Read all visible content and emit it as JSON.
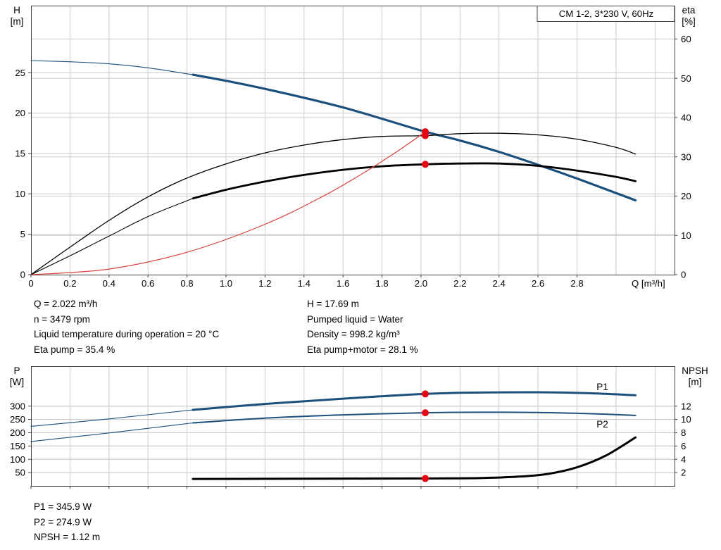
{
  "colors": {
    "blue": "#1b4f7c",
    "black": "#000000",
    "red": "#d9413d",
    "marker_red": "#e30613",
    "grid": "#cccccc",
    "frame": "#404040"
  },
  "info_top": {
    "left": [
      "Q = 2.022 m³/h",
      "n = 3479 rpm",
      "Liquid temperature during operation = 20 °C",
      "Eta pump = 35.4 %"
    ],
    "right": [
      "H = 17.69 m",
      "Pumped liquid = Water",
      "Density = 998.2 kg/m³",
      "Eta pump+motor = 28.1 %"
    ]
  },
  "info_bottom": [
    "P1 = 345.9 W",
    "P2 = 274.9 W",
    "NPSH = 1.12 m"
  ],
  "chart_data": [
    {
      "id": "top",
      "type": "line",
      "title": "CM 1-2, 3*230 V, 60Hz",
      "x_axis": {
        "label": "Q [m³/h]",
        "min": 0,
        "max": 3.3,
        "ticks": [
          0,
          0.2,
          0.4,
          0.6,
          0.8,
          1.0,
          1.2,
          1.4,
          1.6,
          1.8,
          2.0,
          2.2,
          2.4,
          2.6,
          2.8
        ],
        "tick_labels": [
          "0",
          "0.2",
          "0.4",
          "0.6",
          "0.8",
          "1.0",
          "1.2",
          "1.4",
          "1.6",
          "1.8",
          "2.0",
          "2.2",
          "2.4",
          "2.6",
          "2.8"
        ],
        "grid": [
          0.2,
          0.4,
          0.6,
          0.8,
          1.0,
          1.2,
          1.4,
          1.6,
          1.8,
          2.0,
          2.2,
          2.4,
          2.6,
          2.8,
          3.0,
          3.2
        ]
      },
      "y_left": {
        "label": "H",
        "unit": "[m]",
        "min": 0,
        "max": 33.3,
        "ticks": [
          0,
          5,
          10,
          15,
          20,
          25
        ]
      },
      "y_right": {
        "label": "eta",
        "unit": "[%]",
        "min": 0,
        "max": 68.5,
        "ticks": [
          0,
          10,
          20,
          30,
          40,
          50,
          60
        ]
      },
      "series": [
        {
          "name": "hq-curve-lead",
          "color": "blue",
          "width": 1.1,
          "axis": "left",
          "points": [
            [
              0,
              26.5
            ],
            [
              0.2,
              26.35
            ],
            [
              0.4,
              26.1
            ],
            [
              0.6,
              25.6
            ],
            [
              0.83,
              24.75
            ]
          ]
        },
        {
          "name": "hq-curve",
          "color": "blue",
          "width": 3.2,
          "axis": "left",
          "points": [
            [
              0.83,
              24.75
            ],
            [
              1.0,
              24.0
            ],
            [
              1.2,
              23.0
            ],
            [
              1.4,
              21.9
            ],
            [
              1.6,
              20.7
            ],
            [
              1.8,
              19.3
            ],
            [
              2.022,
              17.69
            ],
            [
              2.2,
              16.6
            ],
            [
              2.4,
              15.2
            ],
            [
              2.6,
              13.6
            ],
            [
              2.8,
              11.9
            ],
            [
              3.0,
              10.1
            ],
            [
              3.1,
              9.2
            ]
          ]
        },
        {
          "name": "eta-pump-curve",
          "color": "black",
          "width": 1.3,
          "axis": "right",
          "points": [
            [
              0,
              0
            ],
            [
              0.2,
              7.0
            ],
            [
              0.4,
              13.8
            ],
            [
              0.6,
              19.8
            ],
            [
              0.8,
              24.6
            ],
            [
              1.0,
              28.2
            ],
            [
              1.2,
              31.0
            ],
            [
              1.4,
              33.0
            ],
            [
              1.6,
              34.4
            ],
            [
              1.8,
              35.2
            ],
            [
              2.022,
              35.4
            ],
            [
              2.2,
              35.9
            ],
            [
              2.4,
              36.0
            ],
            [
              2.6,
              35.6
            ],
            [
              2.8,
              34.5
            ],
            [
              3.0,
              32.4
            ],
            [
              3.1,
              30.7
            ]
          ]
        },
        {
          "name": "eta-pump-motor-lead",
          "color": "black",
          "width": 1.1,
          "axis": "right",
          "points": [
            [
              0,
              0
            ],
            [
              0.2,
              4.8
            ],
            [
              0.4,
              9.8
            ],
            [
              0.6,
              14.8
            ],
            [
              0.83,
              19.4
            ]
          ]
        },
        {
          "name": "eta-pump-motor-curve",
          "color": "black",
          "width": 2.8,
          "axis": "right",
          "points": [
            [
              0.83,
              19.4
            ],
            [
              1.0,
              21.6
            ],
            [
              1.2,
              23.7
            ],
            [
              1.4,
              25.4
            ],
            [
              1.6,
              26.7
            ],
            [
              1.8,
              27.6
            ],
            [
              2.022,
              28.1
            ],
            [
              2.2,
              28.3
            ],
            [
              2.4,
              28.3
            ],
            [
              2.6,
              27.7
            ],
            [
              2.8,
              26.5
            ],
            [
              3.0,
              24.9
            ],
            [
              3.1,
              23.8
            ]
          ]
        },
        {
          "name": "system-curve",
          "color": "red",
          "width": 1.2,
          "axis": "left",
          "points": [
            [
              0,
              0
            ],
            [
              0.4,
              0.69
            ],
            [
              0.8,
              2.77
            ],
            [
              1.2,
              6.23
            ],
            [
              1.5,
              9.74
            ],
            [
              1.7,
              12.51
            ],
            [
              1.85,
              14.81
            ],
            [
              1.95,
              16.45
            ],
            [
              2.022,
              17.69
            ]
          ]
        }
      ],
      "markers": [
        {
          "q": 2.022,
          "v": 17.69,
          "axis": "left"
        },
        {
          "q": 2.022,
          "v": 35.4,
          "axis": "right"
        },
        {
          "q": 2.022,
          "v": 28.1,
          "axis": "right"
        }
      ]
    },
    {
      "id": "bottom",
      "type": "line",
      "title": "",
      "x_axis": {
        "label": "",
        "min": 0,
        "max": 3.3,
        "ticks": [
          0,
          0.2,
          0.4,
          0.6,
          0.8,
          1.0,
          1.2,
          1.4,
          1.6,
          1.8,
          2.0,
          2.2,
          2.4,
          2.6,
          2.8
        ],
        "tick_labels": [],
        "grid": [
          0.2,
          0.4,
          0.6,
          0.8,
          1.0,
          1.2,
          1.4,
          1.6,
          1.8,
          2.0,
          2.2,
          2.4,
          2.6,
          2.8,
          3.0,
          3.2
        ]
      },
      "y_left": {
        "label": "P",
        "unit": "[W]",
        "min": 0,
        "max": 450,
        "ticks": [
          50,
          100,
          150,
          200,
          250,
          300
        ]
      },
      "y_right": {
        "label": "NPSH",
        "unit": "[m]",
        "min": 0,
        "max": 18,
        "ticks": [
          2,
          4,
          6,
          8,
          10,
          12
        ]
      },
      "series": [
        {
          "name": "p1-curve-lead",
          "color": "blue",
          "width": 1.1,
          "axis": "left",
          "points": [
            [
              0,
              224
            ],
            [
              0.4,
              252
            ],
            [
              0.83,
              286
            ]
          ]
        },
        {
          "name": "p1-curve",
          "color": "blue",
          "width": 3.0,
          "axis": "left",
          "points": [
            [
              0.83,
              286
            ],
            [
              1.2,
              308
            ],
            [
              1.6,
              328
            ],
            [
              2.022,
              345.9
            ],
            [
              2.3,
              351
            ],
            [
              2.6,
              352
            ],
            [
              2.85,
              349
            ],
            [
              3.1,
              341
            ]
          ]
        },
        {
          "name": "p2-curve-lead",
          "color": "blue",
          "width": 1.1,
          "axis": "left",
          "points": [
            [
              0,
              167
            ],
            [
              0.4,
              199
            ],
            [
              0.83,
              237
            ]
          ]
        },
        {
          "name": "p2-curve",
          "color": "blue",
          "width": 2.0,
          "axis": "left",
          "points": [
            [
              0.83,
              237
            ],
            [
              1.2,
              255
            ],
            [
              1.6,
              267
            ],
            [
              2.022,
              274.9
            ],
            [
              2.3,
              277
            ],
            [
              2.6,
              276
            ],
            [
              2.85,
              272
            ],
            [
              3.1,
              265
            ]
          ]
        },
        {
          "name": "npsh-curve",
          "color": "black",
          "width": 3.0,
          "axis": "right",
          "points": [
            [
              0.83,
              1.05
            ],
            [
              1.2,
              1.07
            ],
            [
              1.6,
              1.1
            ],
            [
              2.022,
              1.12
            ],
            [
              2.3,
              1.18
            ],
            [
              2.5,
              1.4
            ],
            [
              2.65,
              1.8
            ],
            [
              2.8,
              2.8
            ],
            [
              2.95,
              4.6
            ],
            [
              3.1,
              7.3
            ]
          ]
        }
      ],
      "curve_labels": [
        {
          "text": "P1",
          "q": 2.9,
          "v": 360,
          "axis": "left"
        },
        {
          "text": "P2",
          "q": 2.9,
          "v": 220,
          "axis": "left"
        }
      ],
      "markers": [
        {
          "q": 2.022,
          "v": 345.9,
          "axis": "left"
        },
        {
          "q": 2.022,
          "v": 274.9,
          "axis": "left"
        },
        {
          "q": 2.022,
          "v": 1.12,
          "axis": "right"
        }
      ]
    }
  ]
}
